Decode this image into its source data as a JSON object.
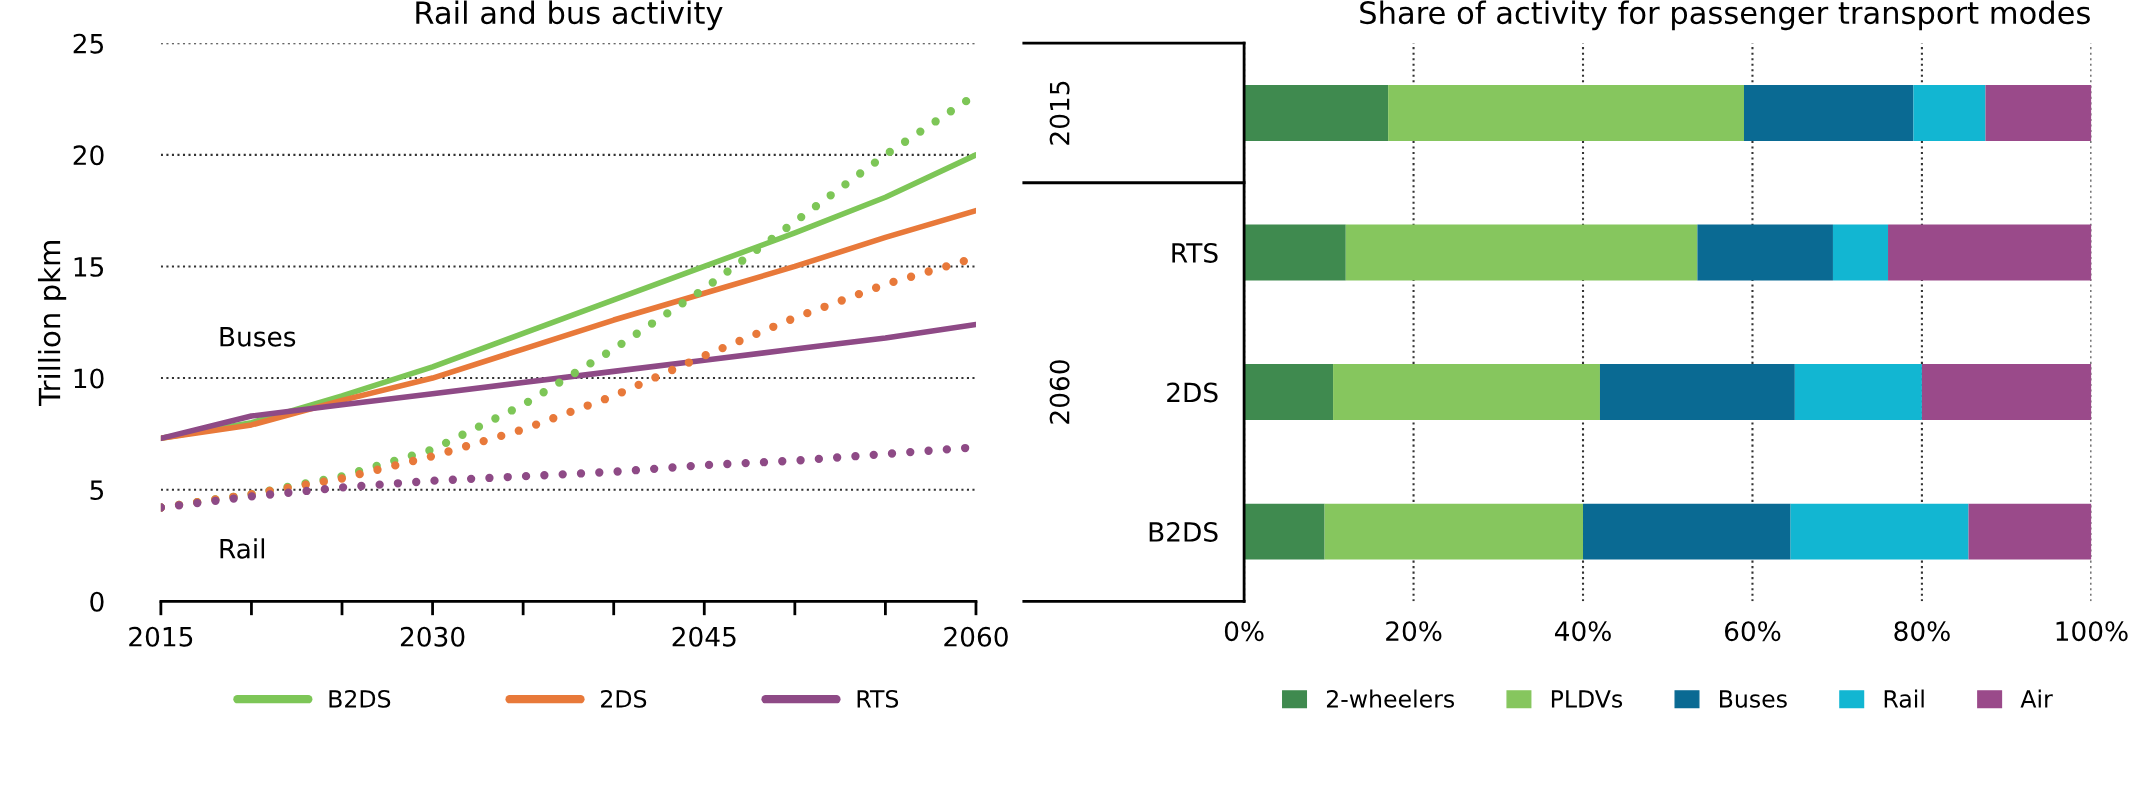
{
  "chart_data": [
    {
      "type": "line",
      "title": "Rail and bus activity",
      "ylabel": "Trillion pkm",
      "x": [
        2015,
        2020,
        2025,
        2030,
        2035,
        2040,
        2045,
        2050,
        2055,
        2060
      ],
      "series": [
        {
          "name": "B2DS",
          "color": "#7dc657",
          "line_style": "solid",
          "values": [
            7.3,
            8.0,
            9.2,
            10.5,
            12.0,
            13.5,
            15.0,
            16.5,
            18.1,
            20.0
          ]
        },
        {
          "name": "2DS",
          "color": "#e8793a",
          "line_style": "solid",
          "values": [
            7.3,
            7.9,
            9.0,
            10.0,
            11.3,
            12.6,
            13.8,
            15.0,
            16.3,
            17.5
          ]
        },
        {
          "name": "RTS",
          "color": "#8e4a86",
          "line_style": "solid",
          "values": [
            7.3,
            8.3,
            8.8,
            9.3,
            9.8,
            10.3,
            10.8,
            11.3,
            11.8,
            12.4
          ]
        },
        {
          "color": "#7dc657",
          "line_style": "dotted",
          "values": [
            4.2,
            4.8,
            5.6,
            6.8,
            8.8,
            11.3,
            14.0,
            17.0,
            20.0,
            22.7
          ]
        },
        {
          "color": "#e8793a",
          "line_style": "dotted",
          "values": [
            4.2,
            4.8,
            5.5,
            6.5,
            7.7,
            9.2,
            11.0,
            12.7,
            14.2,
            15.4
          ]
        },
        {
          "color": "#8e4a86",
          "line_style": "dotted",
          "values": [
            4.2,
            4.7,
            5.1,
            5.4,
            5.6,
            5.8,
            6.1,
            6.3,
            6.6,
            6.9
          ]
        }
      ],
      "xlim": [
        2015,
        2060
      ],
      "xticks": [
        2015,
        {
          "value": 2020,
          "label": null
        },
        {
          "value": 2025,
          "label": null
        },
        2030,
        {
          "value": 2035,
          "label": null
        },
        {
          "value": 2040,
          "label": null
        },
        2045,
        {
          "value": 2050,
          "label": null
        },
        {
          "value": 2055,
          "label": null
        },
        2060
      ],
      "ylim": [
        0,
        25
      ],
      "yticks": [
        0,
        5,
        10,
        15,
        20,
        25
      ],
      "grid": "y",
      "legend": "bottom",
      "annotations": [
        "Buses",
        "Rail"
      ]
    },
    {
      "type": "bar",
      "title": "Share of activity for passenger transport modes",
      "orientation": "horizontal",
      "stacked": true,
      "categories": [
        null,
        "RTS",
        "2DS",
        "B2DS"
      ],
      "series": [
        {
          "name": "2-wheelers",
          "color": "#3f8a4f",
          "values": [
            17,
            12,
            10.5,
            9.5
          ]
        },
        {
          "name": "PLDVs",
          "color": "#86c65e",
          "values": [
            42,
            41.5,
            31.5,
            30.5
          ]
        },
        {
          "name": "Buses",
          "color": "#0a6a93",
          "values": [
            20,
            16,
            23,
            24.5
          ]
        },
        {
          "name": "Rail",
          "color": "#12b6d2",
          "values": [
            8.5,
            6.5,
            15,
            21
          ]
        },
        {
          "name": "Air",
          "color": "#9a4a8a",
          "values": [
            12.5,
            24,
            20,
            14.5
          ]
        }
      ],
      "xlim": [
        0,
        100
      ],
      "xticks": [
        {
          "value": 0,
          "label": "0%"
        },
        {
          "value": 20,
          "label": "20%"
        },
        {
          "value": 40,
          "label": "40%"
        },
        {
          "value": 60,
          "label": "60%"
        },
        {
          "value": 80,
          "label": "80%"
        },
        {
          "value": 100,
          "label": "100%"
        }
      ],
      "grid": "x",
      "legend": "bottom",
      "annotations": [
        "2015",
        "2060"
      ]
    }
  ]
}
